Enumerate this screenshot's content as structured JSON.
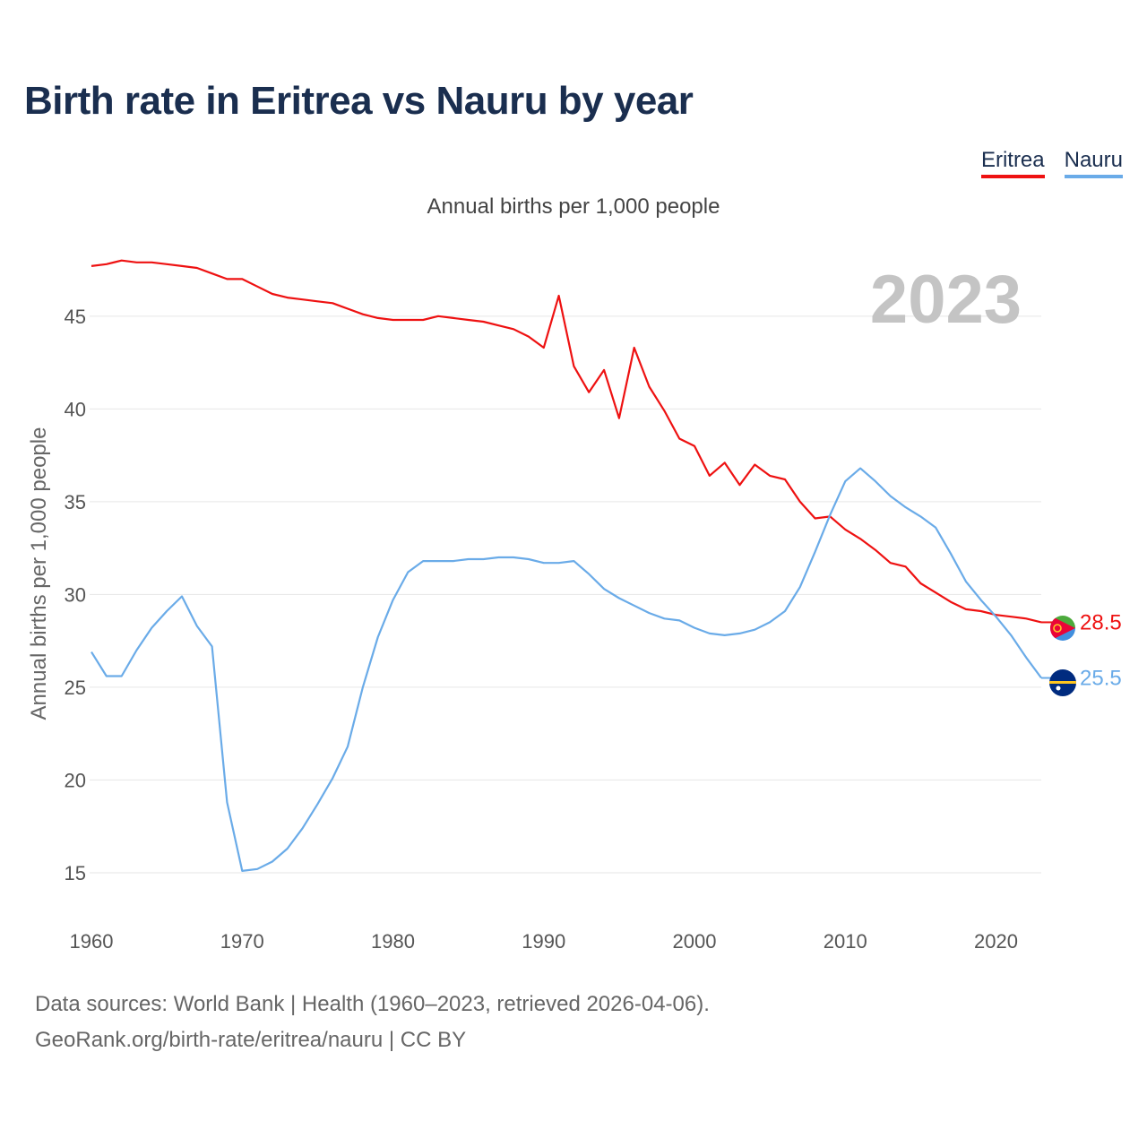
{
  "title": "Birth rate in Eritrea vs Nauru by year",
  "subtitle": "Annual births per 1,000 people",
  "legend": [
    {
      "name": "Eritrea",
      "color": "#ee1111"
    },
    {
      "name": "Nauru",
      "color": "#6aabe8"
    }
  ],
  "year_label": "2023",
  "footer": {
    "line1": "Data sources: World Bank | Health (1960–2023, retrieved 2026-04-06).",
    "line2": "GeoRank.org/birth-rate/eritrea/nauru | CC BY"
  },
  "chart_data": {
    "type": "line",
    "title": "Birth rate in Eritrea vs Nauru by year",
    "xlabel": "",
    "ylabel": "Annual births per 1,000 people",
    "xlim": [
      1960,
      2023
    ],
    "ylim": [
      13.5,
      49
    ],
    "x_ticks": [
      1960,
      1970,
      1980,
      1990,
      2000,
      2010,
      2020
    ],
    "y_ticks": [
      15,
      20,
      25,
      30,
      35,
      40,
      45
    ],
    "grid": true,
    "x": [
      1960,
      1961,
      1962,
      1963,
      1964,
      1965,
      1966,
      1967,
      1968,
      1969,
      1970,
      1971,
      1972,
      1973,
      1974,
      1975,
      1976,
      1977,
      1978,
      1979,
      1980,
      1981,
      1982,
      1983,
      1984,
      1985,
      1986,
      1987,
      1988,
      1989,
      1990,
      1991,
      1992,
      1993,
      1994,
      1995,
      1996,
      1997,
      1998,
      1999,
      2000,
      2001,
      2002,
      2003,
      2004,
      2005,
      2006,
      2007,
      2008,
      2009,
      2010,
      2011,
      2012,
      2013,
      2014,
      2015,
      2016,
      2017,
      2018,
      2019,
      2020,
      2021,
      2022,
      2023
    ],
    "series": [
      {
        "name": "Eritrea",
        "color": "#ee1111",
        "end_label": "28.5",
        "values": [
          47.7,
          47.8,
          48.0,
          47.9,
          47.9,
          47.8,
          47.7,
          47.6,
          47.3,
          47.0,
          47.0,
          46.6,
          46.2,
          46.0,
          45.9,
          45.8,
          45.7,
          45.4,
          45.1,
          44.9,
          44.8,
          44.8,
          44.8,
          45.0,
          44.9,
          44.8,
          44.7,
          44.5,
          44.3,
          43.9,
          43.3,
          46.1,
          42.3,
          40.9,
          42.1,
          39.5,
          43.3,
          41.2,
          39.9,
          38.4,
          38.0,
          36.4,
          37.1,
          35.9,
          37.0,
          36.4,
          36.2,
          35.0,
          34.1,
          34.2,
          33.5,
          33.0,
          32.4,
          31.7,
          31.5,
          30.6,
          30.1,
          29.6,
          29.2,
          29.1,
          28.9,
          28.8,
          28.7,
          28.5
        ]
      },
      {
        "name": "Nauru",
        "color": "#6aabe8",
        "end_label": "25.5",
        "values": [
          26.9,
          25.6,
          25.6,
          27.0,
          28.2,
          29.1,
          29.9,
          28.3,
          27.2,
          18.8,
          15.1,
          15.2,
          15.6,
          16.3,
          17.4,
          18.7,
          20.1,
          21.8,
          25.0,
          27.7,
          29.7,
          31.2,
          31.8,
          31.8,
          31.8,
          31.9,
          31.9,
          32.0,
          32.0,
          31.9,
          31.7,
          31.7,
          31.8,
          31.1,
          30.3,
          29.8,
          29.4,
          29.0,
          28.7,
          28.6,
          28.2,
          27.9,
          27.8,
          27.9,
          28.1,
          28.5,
          29.1,
          30.4,
          32.3,
          34.3,
          36.1,
          36.8,
          36.1,
          35.3,
          34.7,
          34.2,
          33.6,
          32.2,
          30.7,
          29.7,
          28.8,
          27.8,
          26.6,
          25.5
        ]
      }
    ]
  }
}
